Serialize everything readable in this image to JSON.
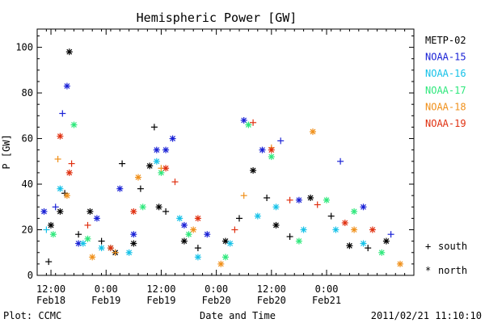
{
  "chart_data": {
    "type": "scatter",
    "title": "Hemispheric Power [GW]",
    "xlabel": "Date and Time",
    "ylabel": "P [GW]",
    "ylim": [
      0,
      108
    ],
    "xlim": [
      "2011-02-18T09:00",
      "2011-02-21T19:00"
    ],
    "y_ticks": [
      0,
      20,
      40,
      60,
      80,
      100
    ],
    "x_ticks": [
      {
        "t": "2011-02-18T12:00",
        "time": "12:00",
        "day": "Feb18"
      },
      {
        "t": "2011-02-19T00:00",
        "time": "0:00",
        "day": "Feb19"
      },
      {
        "t": "2011-02-19T12:00",
        "time": "12:00",
        "day": "Feb19"
      },
      {
        "t": "2011-02-20T00:00",
        "time": "0:00",
        "day": "Feb20"
      },
      {
        "t": "2011-02-20T12:00",
        "time": "12:00",
        "day": "Feb20"
      },
      {
        "t": "2011-02-21T00:00",
        "time": "0:00",
        "day": "Feb21"
      }
    ],
    "legend": {
      "placement": "right",
      "markers": [
        {
          "symbol": "+",
          "label": "south"
        },
        {
          "symbol": "*",
          "label": "north"
        }
      ]
    },
    "series": [
      {
        "name": "METP-02",
        "color": "#000000",
        "points": [
          {
            "t": "2011-02-18T11:30",
            "v": 6,
            "h": "south"
          },
          {
            "t": "2011-02-18T12:00",
            "v": 22,
            "h": "north"
          },
          {
            "t": "2011-02-18T14:00",
            "v": 28,
            "h": "north"
          },
          {
            "t": "2011-02-18T15:00",
            "v": 36,
            "h": "south"
          },
          {
            "t": "2011-02-18T16:00",
            "v": 98,
            "h": "north"
          },
          {
            "t": "2011-02-18T18:00",
            "v": 18,
            "h": "south"
          },
          {
            "t": "2011-02-18T20:30",
            "v": 28,
            "h": "north"
          },
          {
            "t": "2011-02-18T23:00",
            "v": 15,
            "h": "south"
          },
          {
            "t": "2011-02-19T02:00",
            "v": 10,
            "h": "north"
          },
          {
            "t": "2011-02-19T03:30",
            "v": 49,
            "h": "south"
          },
          {
            "t": "2011-02-19T06:00",
            "v": 14,
            "h": "north"
          },
          {
            "t": "2011-02-19T07:30",
            "v": 38,
            "h": "south"
          },
          {
            "t": "2011-02-19T09:30",
            "v": 48,
            "h": "north"
          },
          {
            "t": "2011-02-19T10:30",
            "v": 65,
            "h": "south"
          },
          {
            "t": "2011-02-19T11:30",
            "v": 30,
            "h": "north"
          },
          {
            "t": "2011-02-19T13:00",
            "v": 28,
            "h": "south"
          },
          {
            "t": "2011-02-19T17:00",
            "v": 15,
            "h": "north"
          },
          {
            "t": "2011-02-19T20:00",
            "v": 12,
            "h": "south"
          },
          {
            "t": "2011-02-20T02:00",
            "v": 15,
            "h": "north"
          },
          {
            "t": "2011-02-20T05:00",
            "v": 25,
            "h": "south"
          },
          {
            "t": "2011-02-20T08:00",
            "v": 46,
            "h": "north"
          },
          {
            "t": "2011-02-20T11:00",
            "v": 34,
            "h": "south"
          },
          {
            "t": "2011-02-20T13:00",
            "v": 22,
            "h": "north"
          },
          {
            "t": "2011-02-20T16:00",
            "v": 17,
            "h": "south"
          },
          {
            "t": "2011-02-20T20:30",
            "v": 34,
            "h": "north"
          },
          {
            "t": "2011-02-21T01:00",
            "v": 26,
            "h": "south"
          },
          {
            "t": "2011-02-21T05:00",
            "v": 13,
            "h": "north"
          },
          {
            "t": "2011-02-21T09:00",
            "v": 12,
            "h": "south"
          },
          {
            "t": "2011-02-21T13:00",
            "v": 15,
            "h": "north"
          }
        ]
      },
      {
        "name": "NOAA-15",
        "color": "#1a22d6",
        "points": [
          {
            "t": "2011-02-18T10:30",
            "v": 28,
            "h": "north"
          },
          {
            "t": "2011-02-18T13:00",
            "v": 30,
            "h": "south"
          },
          {
            "t": "2011-02-18T14:30",
            "v": 71,
            "h": "south"
          },
          {
            "t": "2011-02-18T15:30",
            "v": 83,
            "h": "north"
          },
          {
            "t": "2011-02-18T18:00",
            "v": 14,
            "h": "north"
          },
          {
            "t": "2011-02-18T22:00",
            "v": 25,
            "h": "north"
          },
          {
            "t": "2011-02-19T03:00",
            "v": 38,
            "h": "north"
          },
          {
            "t": "2011-02-19T06:00",
            "v": 18,
            "h": "north"
          },
          {
            "t": "2011-02-19T11:00",
            "v": 55,
            "h": "north"
          },
          {
            "t": "2011-02-19T13:00",
            "v": 55,
            "h": "north"
          },
          {
            "t": "2011-02-19T14:30",
            "v": 60,
            "h": "north"
          },
          {
            "t": "2011-02-19T17:00",
            "v": 22,
            "h": "north"
          },
          {
            "t": "2011-02-19T22:00",
            "v": 18,
            "h": "north"
          },
          {
            "t": "2011-02-20T06:00",
            "v": 68,
            "h": "north"
          },
          {
            "t": "2011-02-20T10:00",
            "v": 55,
            "h": "north"
          },
          {
            "t": "2011-02-20T14:00",
            "v": 59,
            "h": "south"
          },
          {
            "t": "2011-02-20T18:00",
            "v": 33,
            "h": "north"
          },
          {
            "t": "2011-02-21T03:00",
            "v": 50,
            "h": "south"
          },
          {
            "t": "2011-02-21T08:00",
            "v": 30,
            "h": "north"
          },
          {
            "t": "2011-02-21T14:00",
            "v": 18,
            "h": "south"
          }
        ]
      },
      {
        "name": "NOAA-16",
        "color": "#16c2e8",
        "points": [
          {
            "t": "2011-02-18T11:00",
            "v": 20,
            "h": "south"
          },
          {
            "t": "2011-02-18T14:00",
            "v": 38,
            "h": "north"
          },
          {
            "t": "2011-02-18T19:00",
            "v": 14,
            "h": "north"
          },
          {
            "t": "2011-02-18T23:00",
            "v": 12,
            "h": "north"
          },
          {
            "t": "2011-02-19T05:00",
            "v": 10,
            "h": "north"
          },
          {
            "t": "2011-02-19T11:00",
            "v": 50,
            "h": "north"
          },
          {
            "t": "2011-02-19T16:00",
            "v": 25,
            "h": "north"
          },
          {
            "t": "2011-02-19T20:00",
            "v": 8,
            "h": "north"
          },
          {
            "t": "2011-02-20T03:00",
            "v": 14,
            "h": "north"
          },
          {
            "t": "2011-02-20T09:00",
            "v": 26,
            "h": "north"
          },
          {
            "t": "2011-02-20T13:00",
            "v": 30,
            "h": "north"
          },
          {
            "t": "2011-02-20T19:00",
            "v": 20,
            "h": "north"
          },
          {
            "t": "2011-02-21T02:00",
            "v": 20,
            "h": "north"
          },
          {
            "t": "2011-02-21T08:00",
            "v": 14,
            "h": "north"
          }
        ]
      },
      {
        "name": "NOAA-17",
        "color": "#2fe87c",
        "points": [
          {
            "t": "2011-02-18T12:30",
            "v": 18,
            "h": "north"
          },
          {
            "t": "2011-02-18T17:00",
            "v": 66,
            "h": "north"
          },
          {
            "t": "2011-02-18T20:00",
            "v": 16,
            "h": "north"
          },
          {
            "t": "2011-02-19T01:00",
            "v": 12,
            "h": "north"
          },
          {
            "t": "2011-02-19T08:00",
            "v": 30,
            "h": "north"
          },
          {
            "t": "2011-02-19T12:00",
            "v": 45,
            "h": "north"
          },
          {
            "t": "2011-02-19T18:00",
            "v": 18,
            "h": "north"
          },
          {
            "t": "2011-02-20T02:00",
            "v": 8,
            "h": "north"
          },
          {
            "t": "2011-02-20T07:00",
            "v": 66,
            "h": "north"
          },
          {
            "t": "2011-02-20T12:00",
            "v": 52,
            "h": "north"
          },
          {
            "t": "2011-02-20T18:00",
            "v": 15,
            "h": "north"
          },
          {
            "t": "2011-02-21T00:00",
            "v": 33,
            "h": "north"
          },
          {
            "t": "2011-02-21T06:00",
            "v": 28,
            "h": "north"
          },
          {
            "t": "2011-02-21T12:00",
            "v": 10,
            "h": "north"
          }
        ]
      },
      {
        "name": "NOAA-18",
        "color": "#f0901a",
        "points": [
          {
            "t": "2011-02-18T13:30",
            "v": 51,
            "h": "south"
          },
          {
            "t": "2011-02-18T15:30",
            "v": 35,
            "h": "north"
          },
          {
            "t": "2011-02-18T21:00",
            "v": 8,
            "h": "north"
          },
          {
            "t": "2011-02-19T02:00",
            "v": 10,
            "h": "south"
          },
          {
            "t": "2011-02-19T07:00",
            "v": 43,
            "h": "north"
          },
          {
            "t": "2011-02-19T12:00",
            "v": 47,
            "h": "south"
          },
          {
            "t": "2011-02-19T19:00",
            "v": 20,
            "h": "north"
          },
          {
            "t": "2011-02-20T01:00",
            "v": 5,
            "h": "north"
          },
          {
            "t": "2011-02-20T06:00",
            "v": 35,
            "h": "south"
          },
          {
            "t": "2011-02-20T12:00",
            "v": 56,
            "h": "south"
          },
          {
            "t": "2011-02-20T21:00",
            "v": 63,
            "h": "north"
          },
          {
            "t": "2011-02-21T06:00",
            "v": 20,
            "h": "north"
          },
          {
            "t": "2011-02-21T16:00",
            "v": 5,
            "h": "north"
          }
        ]
      },
      {
        "name": "NOAA-19",
        "color": "#e03010",
        "points": [
          {
            "t": "2011-02-18T14:00",
            "v": 61,
            "h": "north"
          },
          {
            "t": "2011-02-18T16:00",
            "v": 45,
            "h": "north"
          },
          {
            "t": "2011-02-18T16:30",
            "v": 49,
            "h": "south"
          },
          {
            "t": "2011-02-18T20:00",
            "v": 22,
            "h": "south"
          },
          {
            "t": "2011-02-19T01:00",
            "v": 12,
            "h": "north"
          },
          {
            "t": "2011-02-19T06:00",
            "v": 28,
            "h": "north"
          },
          {
            "t": "2011-02-19T13:00",
            "v": 47,
            "h": "north"
          },
          {
            "t": "2011-02-19T15:00",
            "v": 41,
            "h": "south"
          },
          {
            "t": "2011-02-19T20:00",
            "v": 25,
            "h": "north"
          },
          {
            "t": "2011-02-20T04:00",
            "v": 20,
            "h": "south"
          },
          {
            "t": "2011-02-20T08:00",
            "v": 67,
            "h": "south"
          },
          {
            "t": "2011-02-20T12:00",
            "v": 55,
            "h": "north"
          },
          {
            "t": "2011-02-20T16:00",
            "v": 33,
            "h": "south"
          },
          {
            "t": "2011-02-20T22:00",
            "v": 31,
            "h": "south"
          },
          {
            "t": "2011-02-21T04:00",
            "v": 23,
            "h": "north"
          },
          {
            "t": "2011-02-21T10:00",
            "v": 20,
            "h": "north"
          }
        ]
      }
    ]
  },
  "footer": {
    "credit": "Plot: CCMC",
    "timestamp": "2011/02/21 11:10:10"
  }
}
